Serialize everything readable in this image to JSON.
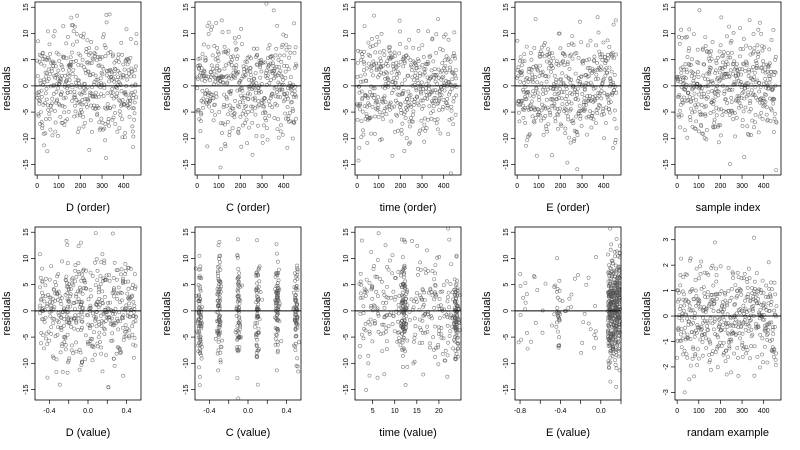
{
  "chart_data": [
    {
      "type": "scatter",
      "panel": "d-order",
      "xlabel": "D (order)",
      "ylabel": "residuals",
      "xlim": [
        -10,
        480
      ],
      "ylim": [
        -17,
        16
      ],
      "xticks": [
        0,
        100,
        200,
        300,
        400
      ],
      "yticks": [
        -15,
        -10,
        -5,
        0,
        5,
        10,
        15
      ],
      "hline": 0,
      "pattern": "order",
      "n": 460,
      "sigma": 5
    },
    {
      "type": "scatter",
      "panel": "c-order",
      "xlabel": "C (order)",
      "ylabel": "residuals",
      "xlim": [
        -10,
        480
      ],
      "ylim": [
        -17,
        16
      ],
      "xticks": [
        0,
        100,
        200,
        300,
        400
      ],
      "yticks": [
        -15,
        -10,
        -5,
        0,
        5,
        10,
        15
      ],
      "hline": 0,
      "pattern": "order",
      "n": 460,
      "sigma": 5
    },
    {
      "type": "scatter",
      "panel": "time-order",
      "xlabel": "time (order)",
      "ylabel": "residuals",
      "xlim": [
        -10,
        480
      ],
      "ylim": [
        -17,
        16
      ],
      "xticks": [
        0,
        100,
        200,
        300,
        400
      ],
      "yticks": [
        -15,
        -10,
        -5,
        0,
        5,
        10,
        15
      ],
      "hline": 0,
      "pattern": "order",
      "n": 460,
      "sigma": 5
    },
    {
      "type": "scatter",
      "panel": "e-order",
      "xlabel": "E (order)",
      "ylabel": "residuals",
      "xlim": [
        -10,
        480
      ],
      "ylim": [
        -17,
        16
      ],
      "xticks": [
        0,
        100,
        200,
        300,
        400
      ],
      "yticks": [
        -15,
        -10,
        -5,
        0,
        5,
        10,
        15
      ],
      "hline": 0,
      "pattern": "order",
      "n": 460,
      "sigma": 5
    },
    {
      "type": "scatter",
      "panel": "sample-index",
      "xlabel": "sample index",
      "ylabel": "residuals",
      "xlim": [
        -10,
        480
      ],
      "ylim": [
        -17,
        16
      ],
      "xticks": [
        0,
        100,
        200,
        300,
        400
      ],
      "yticks": [
        -15,
        -10,
        -5,
        0,
        5,
        10,
        15
      ],
      "hline": 0,
      "pattern": "order",
      "n": 460,
      "sigma": 5
    },
    {
      "type": "scatter",
      "panel": "d-value",
      "xlabel": "D (value)",
      "ylabel": "residuals",
      "xlim": [
        -0.55,
        0.55
      ],
      "ylim": [
        -17,
        16
      ],
      "xticks": [
        -0.4,
        -0.2,
        0.0,
        0.2,
        0.4
      ],
      "xtick_labels": [
        "-0.4",
        "",
        "0.0",
        "",
        "0.4"
      ],
      "yticks": [
        -15,
        -10,
        -5,
        0,
        5,
        10,
        15
      ],
      "hline": 0,
      "pattern": "uniform",
      "range": [
        -0.5,
        0.5
      ],
      "n": 460,
      "sigma": 5
    },
    {
      "type": "scatter",
      "panel": "c-value",
      "xlabel": "C (value)",
      "ylabel": "residuals",
      "xlim": [
        -0.55,
        0.55
      ],
      "ylim": [
        -17,
        16
      ],
      "xticks": [
        -0.4,
        -0.2,
        0.0,
        0.2,
        0.4
      ],
      "xtick_labels": [
        "-0.4",
        "",
        "0.0",
        "",
        "0.4"
      ],
      "yticks": [
        -15,
        -10,
        -5,
        0,
        5,
        10,
        15
      ],
      "hline": 0,
      "pattern": "clusters",
      "centers": [
        -0.5,
        -0.3,
        -0.1,
        0.1,
        0.3,
        0.5
      ],
      "n": 460,
      "sigma": 5
    },
    {
      "type": "scatter",
      "panel": "time-value",
      "xlabel": "time (value)",
      "ylabel": "residuals",
      "xlim": [
        1,
        25
      ],
      "ylim": [
        -17,
        16
      ],
      "xticks": [
        5,
        10,
        15,
        20
      ],
      "yticks": [
        -15,
        -10,
        -5,
        0,
        5,
        10,
        15
      ],
      "hline": 0,
      "pattern": "uniform-cluster",
      "range": [
        2,
        24
      ],
      "centers": [
        12,
        24
      ],
      "n": 460,
      "sigma": 5
    },
    {
      "type": "scatter",
      "panel": "e-value",
      "xlabel": "E (value)",
      "ylabel": "residuals",
      "xlim": [
        -0.85,
        0.2
      ],
      "ylim": [
        -17,
        16
      ],
      "xticks": [
        -0.8,
        -0.6,
        -0.4,
        -0.2,
        0.0,
        0.2
      ],
      "xtick_labels": [
        "-0.8",
        "",
        "-0.4",
        "",
        "0.0",
        ""
      ],
      "yticks": [
        -15,
        -10,
        -5,
        0,
        5,
        10,
        15
      ],
      "hline": 0,
      "pattern": "skewed",
      "n": 460,
      "sigma": 5
    },
    {
      "type": "scatter",
      "panel": "random-example",
      "xlabel": "randam example",
      "ylabel": "residuals",
      "xlim": [
        -10,
        480
      ],
      "ylim": [
        -3.3,
        3.5
      ],
      "xticks": [
        0,
        100,
        200,
        300,
        400
      ],
      "yticks": [
        -3,
        -2,
        -1,
        0,
        1,
        2,
        3
      ],
      "hline": 0,
      "pattern": "order",
      "n": 460,
      "sigma": 1
    }
  ]
}
